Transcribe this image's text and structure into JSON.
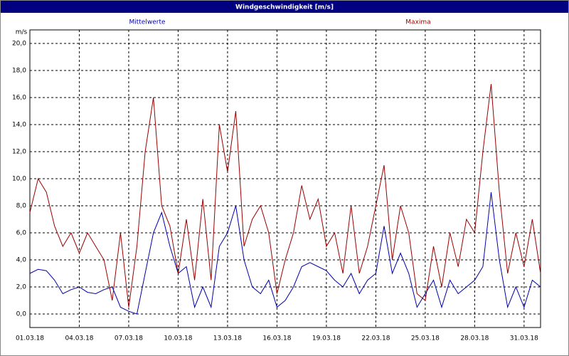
{
  "chart_data": {
    "type": "line",
    "title": "Windgeschwindigkeit [m/s]",
    "y_label": "m/s",
    "x": [
      0,
      0.5,
      1,
      1.5,
      2,
      2.5,
      3,
      3.5,
      4,
      4.5,
      5,
      5.5,
      6,
      6.5,
      7,
      7.5,
      8,
      8.5,
      9,
      9.5,
      10,
      10.5,
      11,
      11.5,
      12,
      12.5,
      13,
      13.5,
      14,
      14.5,
      15,
      15.5,
      16,
      16.5,
      17,
      17.5,
      18,
      18.5,
      19,
      19.5,
      20,
      20.5,
      21,
      21.5,
      22,
      22.5,
      23,
      23.5,
      24,
      24.5,
      25,
      25.5,
      26,
      26.5,
      27,
      27.5,
      28,
      28.5,
      29,
      29.5,
      30,
      30.5,
      31
    ],
    "series": [
      {
        "name": "Mittelwerte",
        "color": "#0000aa",
        "values": [
          3,
          3.3,
          3.2,
          2.5,
          1.5,
          1.8,
          2,
          1.6,
          1.5,
          1.8,
          2,
          0.5,
          0.2,
          0,
          3,
          6,
          7.5,
          5,
          3,
          3.5,
          0.5,
          2,
          0.5,
          5,
          6,
          8,
          4,
          2,
          1.5,
          2.5,
          0.5,
          1,
          2,
          3.5,
          3.8,
          3.5,
          3.2,
          2.5,
          2,
          3,
          1.5,
          2.5,
          3,
          6.5,
          3,
          4.5,
          3,
          0.5,
          1.5,
          2.5,
          0.5,
          2.5,
          1.5,
          2,
          2.5,
          3.5,
          9,
          4,
          0.5,
          2,
          0.5,
          2.5,
          2
        ]
      },
      {
        "name": "Maxima",
        "color": "#990000",
        "values": [
          7.5,
          10,
          9,
          6.5,
          5,
          6,
          4.5,
          6,
          5,
          4,
          1,
          6,
          0.5,
          5,
          12,
          16,
          8,
          6.5,
          3,
          7,
          2.5,
          8.5,
          2.5,
          14,
          10.5,
          15,
          5,
          7,
          8,
          6,
          1.5,
          4,
          6,
          9.5,
          7,
          8.5,
          5,
          6,
          3,
          8,
          3,
          5,
          8,
          11,
          4,
          8,
          6,
          1.5,
          1,
          5,
          2,
          6,
          3.5,
          7,
          6,
          12,
          17,
          9,
          3,
          6,
          3.5,
          7,
          3
        ]
      }
    ],
    "xlim": [
      0,
      31
    ],
    "xticks": [
      {
        "value": 0,
        "label": "01.03.18"
      },
      {
        "value": 3,
        "label": "04.03.18"
      },
      {
        "value": 6,
        "label": "07.03.18"
      },
      {
        "value": 9,
        "label": "10.03.18"
      },
      {
        "value": 12,
        "label": "13.03.18"
      },
      {
        "value": 15,
        "label": "16.03.18"
      },
      {
        "value": 18,
        "label": "19.03.18"
      },
      {
        "value": 21,
        "label": "22.03.18"
      },
      {
        "value": 24,
        "label": "25.03.18"
      },
      {
        "value": 27,
        "label": "28.03.18"
      },
      {
        "value": 30,
        "label": "31.03.18"
      }
    ],
    "ylim": [
      -1,
      21
    ],
    "yticks": [
      {
        "value": 0,
        "label": "0,0"
      },
      {
        "value": 2,
        "label": "2,0"
      },
      {
        "value": 4,
        "label": "4,0"
      },
      {
        "value": 6,
        "label": "6,0"
      },
      {
        "value": 8,
        "label": "8,0"
      },
      {
        "value": 10,
        "label": "10,0"
      },
      {
        "value": 12,
        "label": "12,0"
      },
      {
        "value": 14,
        "label": "14,0"
      },
      {
        "value": 16,
        "label": "16,0"
      },
      {
        "value": 18,
        "label": "18,0"
      },
      {
        "value": 20,
        "label": "20,0"
      }
    ],
    "grid": true
  }
}
